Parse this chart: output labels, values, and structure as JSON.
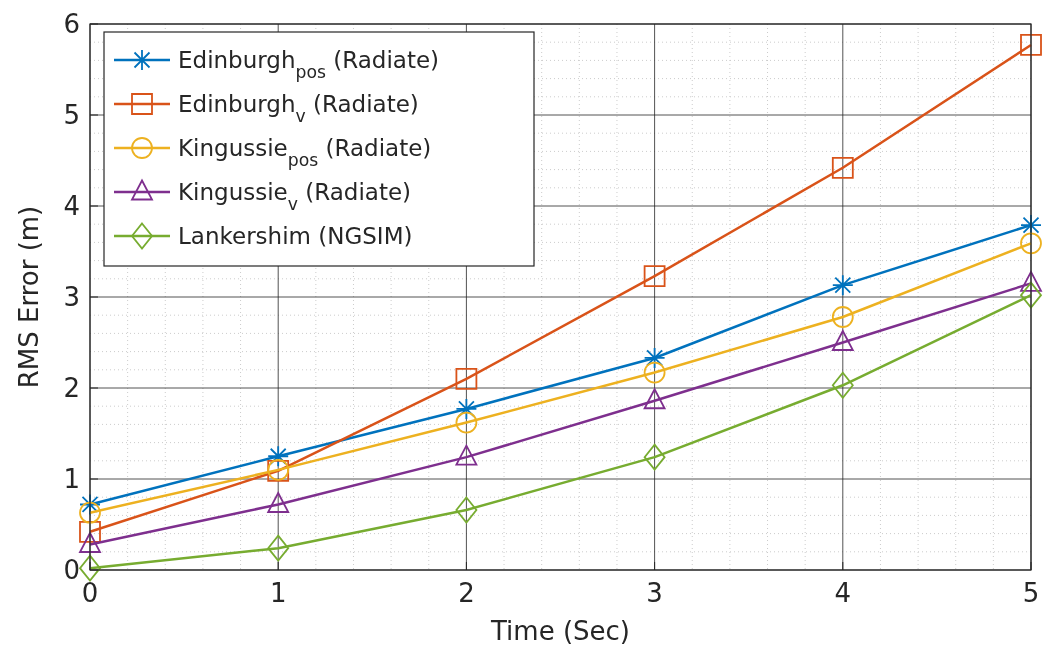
{
  "chart_data": {
    "type": "line",
    "xlabel": "Time (Sec)",
    "ylabel": "RMS Error (m)",
    "x": [
      0,
      1,
      2,
      3,
      4,
      5
    ],
    "xlim": [
      0,
      5
    ],
    "xticks": [
      0,
      1,
      2,
      3,
      4,
      5
    ],
    "ylim": [
      0,
      6
    ],
    "yticks": [
      0,
      1,
      2,
      3,
      4,
      5,
      6
    ],
    "grid": true,
    "legend": "top left",
    "line_style": "solid",
    "series": [
      {
        "name": "Edinburgh$_{pos}$ (Radiate)",
        "color": "#0072bd",
        "marker": "cross",
        "values": [
          0.72,
          1.25,
          1.77,
          2.33,
          3.13,
          3.79
        ]
      },
      {
        "name": "Edinburgh$_{v}$ (Radiate)",
        "color": "#d95319",
        "marker": "square",
        "values": [
          0.42,
          1.09,
          2.1,
          3.23,
          4.42,
          5.77
        ]
      },
      {
        "name": "Kingussie$_{pos}$ (Radiate)",
        "color": "#edb120",
        "marker": "circle",
        "values": [
          0.63,
          1.1,
          1.62,
          2.17,
          2.78,
          3.59
        ]
      },
      {
        "name": "Kingussie$_{v}$ (Radiate)",
        "color": "#7e2f8e",
        "marker": "triangle",
        "values": [
          0.28,
          0.72,
          1.24,
          1.86,
          2.5,
          3.15
        ]
      },
      {
        "name": "Lankershim (NGSIM)",
        "color": "#77ac30",
        "marker": "diamond",
        "values": [
          0.02,
          0.24,
          0.66,
          1.24,
          2.03,
          3.02
        ]
      }
    ]
  }
}
